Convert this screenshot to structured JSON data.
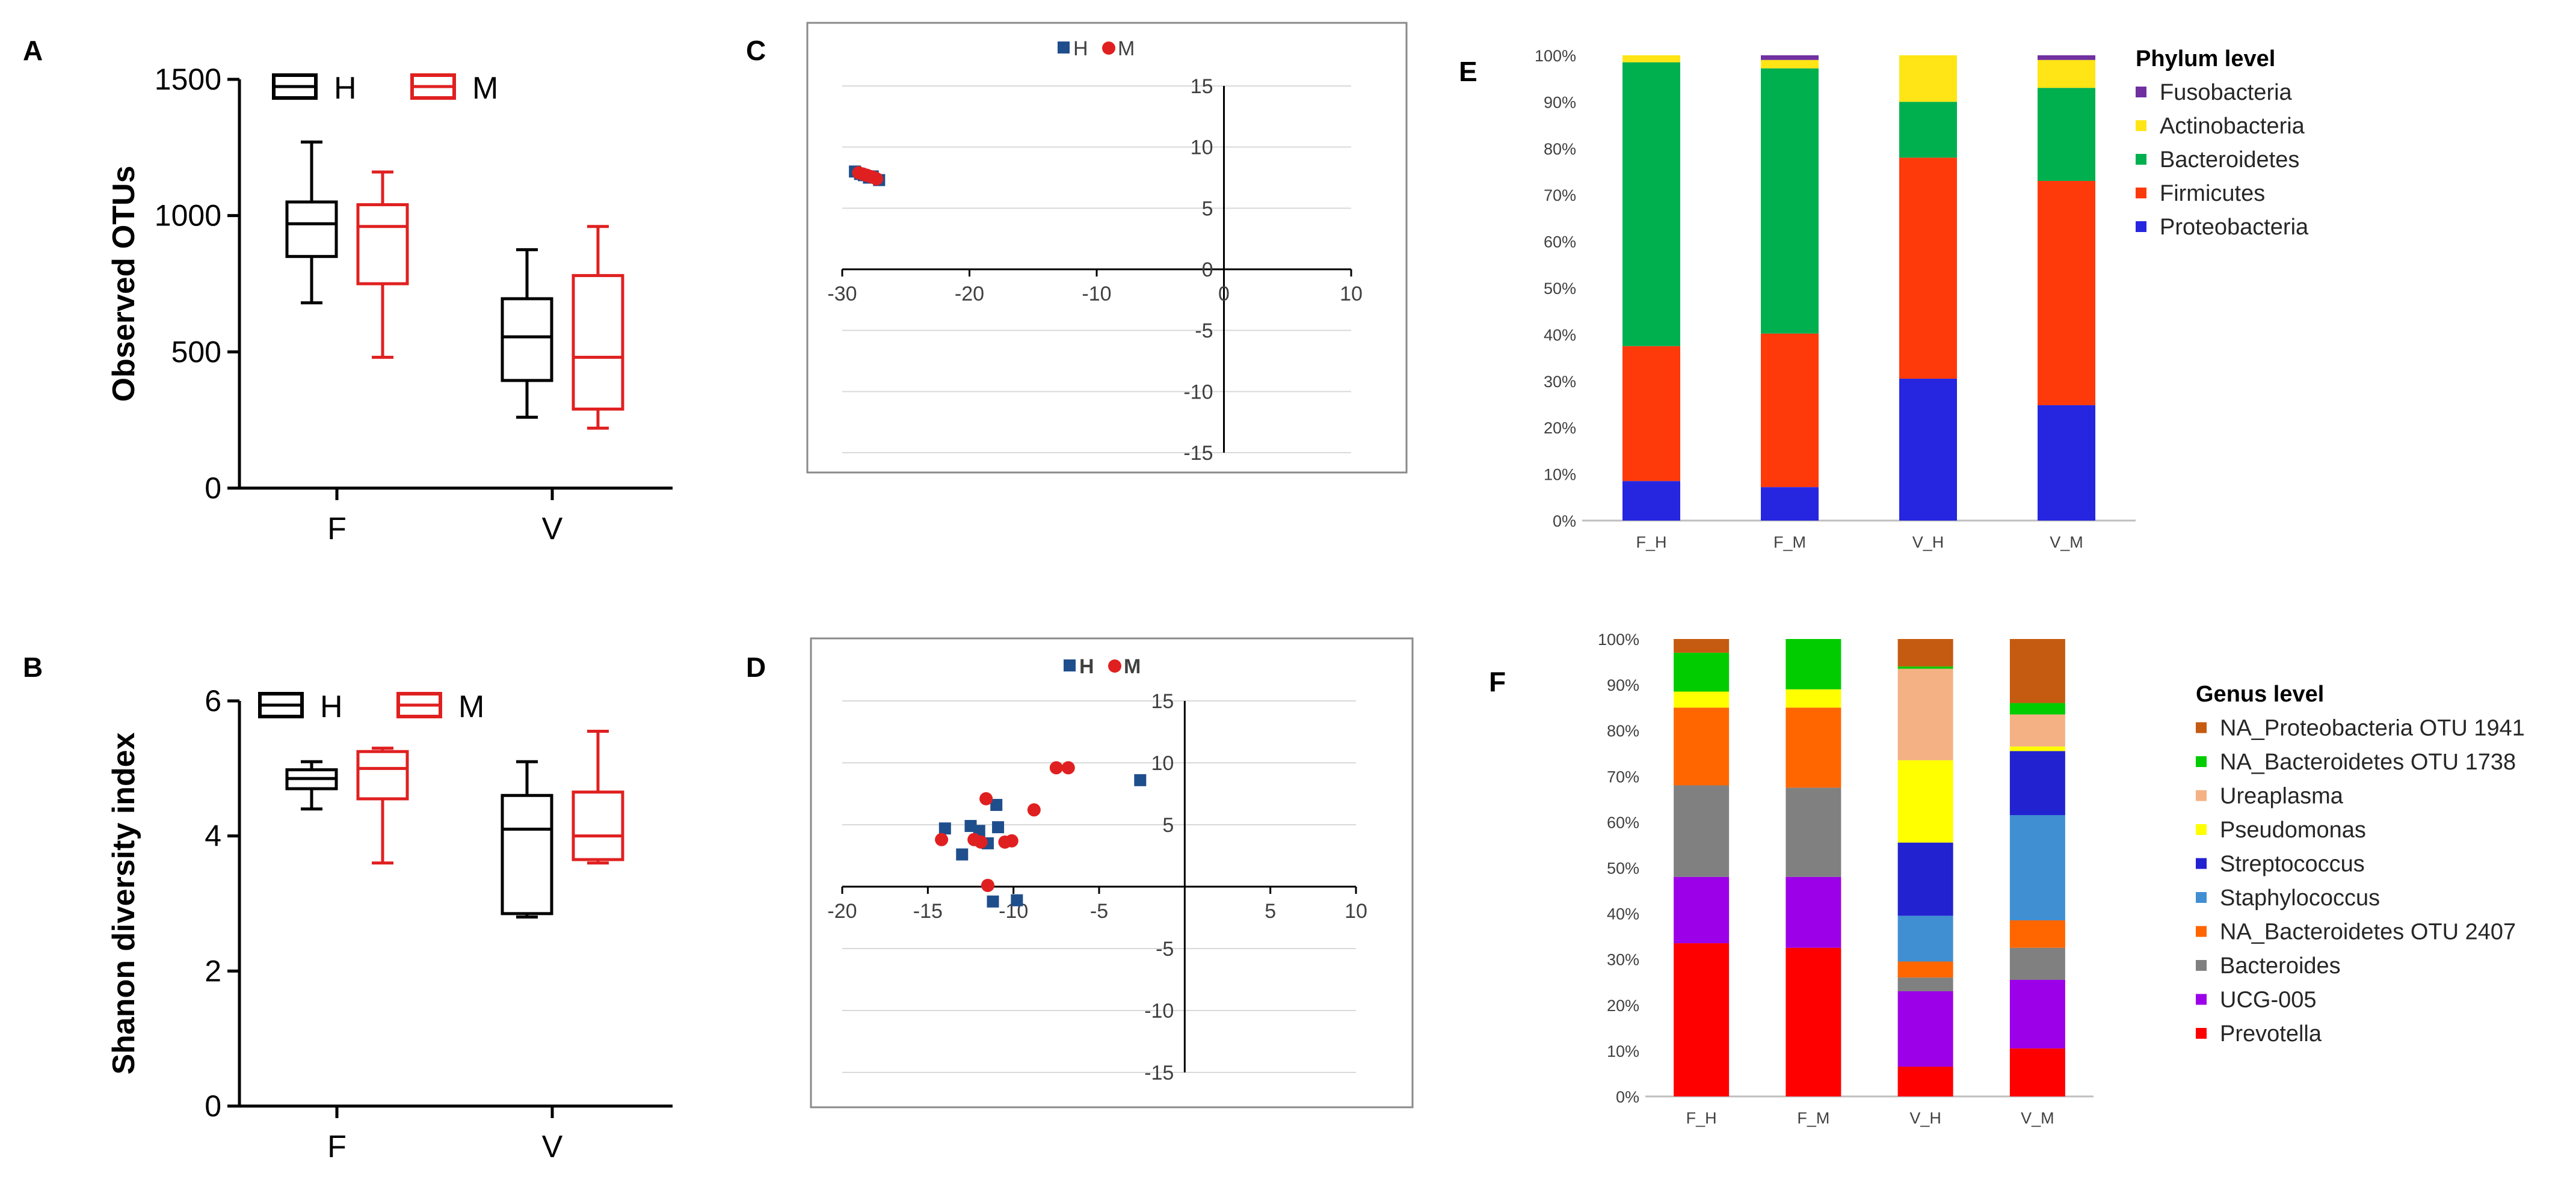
{
  "chart_data": [
    {
      "panel": "A",
      "type": "box",
      "ylabel": "Observed OTUs",
      "categories": [
        "F",
        "V"
      ],
      "ylim": [
        0,
        1500
      ],
      "yticks": [
        0,
        500,
        1000,
        1500
      ],
      "legend": [
        "H",
        "M"
      ],
      "series": [
        {
          "name": "H",
          "color": "#000000",
          "boxes": [
            {
              "min": 680,
              "q1": 850,
              "median": 970,
              "q3": 1050,
              "max": 1270
            },
            {
              "min": 260,
              "q1": 395,
              "median": 555,
              "q3": 695,
              "max": 875
            }
          ]
        },
        {
          "name": "M",
          "color": "#e02020",
          "boxes": [
            {
              "min": 480,
              "q1": 750,
              "median": 960,
              "q3": 1040,
              "max": 1160
            },
            {
              "min": 220,
              "q1": 290,
              "median": 480,
              "q3": 780,
              "max": 960
            }
          ]
        }
      ]
    },
    {
      "panel": "B",
      "type": "box",
      "ylabel": "Shanon diversity index",
      "categories": [
        "F",
        "V"
      ],
      "ylim": [
        0,
        6
      ],
      "yticks": [
        0,
        2,
        4,
        6
      ],
      "legend": [
        "H",
        "M"
      ],
      "series": [
        {
          "name": "H",
          "color": "#000000",
          "boxes": [
            {
              "min": 4.4,
              "q1": 4.7,
              "median": 4.85,
              "q3": 4.98,
              "max": 5.1
            },
            {
              "min": 2.8,
              "q1": 2.85,
              "median": 4.1,
              "q3": 4.6,
              "max": 5.1
            }
          ]
        },
        {
          "name": "M",
          "color": "#e02020",
          "boxes": [
            {
              "min": 3.6,
              "q1": 4.55,
              "median": 5.0,
              "q3": 5.25,
              "max": 5.3
            },
            {
              "min": 3.6,
              "q1": 3.65,
              "median": 4.0,
              "q3": 4.65,
              "max": 5.55
            }
          ]
        }
      ]
    },
    {
      "panel": "C",
      "type": "scatter",
      "xlim": [
        -30,
        10
      ],
      "ylim": [
        -15,
        15
      ],
      "xticks": [
        -30,
        -20,
        -10,
        0,
        10
      ],
      "yticks": [
        -15,
        -10,
        -5,
        0,
        5,
        10,
        15
      ],
      "legend": [
        "H",
        "M"
      ],
      "series": [
        {
          "name": "H",
          "color": "#1f4e8c",
          "marker": "square",
          "points": [
            [
              -29.0,
              8.0
            ],
            [
              -28.6,
              7.8
            ],
            [
              -28.3,
              7.7
            ],
            [
              -27.9,
              7.5
            ],
            [
              -27.6,
              7.6
            ],
            [
              -27.1,
              7.3
            ]
          ]
        },
        {
          "name": "M",
          "color": "#e02020",
          "marker": "circle",
          "points": [
            [
              -28.7,
              7.9
            ],
            [
              -28.4,
              7.8
            ],
            [
              -28.1,
              7.7
            ],
            [
              -27.8,
              7.6
            ],
            [
              -27.5,
              7.5
            ],
            [
              -27.3,
              7.4
            ]
          ]
        }
      ]
    },
    {
      "panel": "D",
      "type": "scatter",
      "xlim": [
        -20,
        10
      ],
      "ylim": [
        -15,
        15
      ],
      "xticks": [
        -20,
        -15,
        -10,
        -5,
        5,
        10
      ],
      "xticklabels": [
        "-20",
        "-15",
        "-10",
        "-5",
        "5",
        "10"
      ],
      "yticks": [
        -15,
        -10,
        -5,
        5,
        10,
        15
      ],
      "legend": [
        "H",
        "M"
      ],
      "series": [
        {
          "name": "H",
          "color": "#1f4e8c",
          "marker": "square",
          "points": [
            [
              -14.0,
              4.7
            ],
            [
              -13.0,
              2.6
            ],
            [
              -12.5,
              4.9
            ],
            [
              -12.0,
              4.5
            ],
            [
              -11.5,
              3.5
            ],
            [
              -11.0,
              6.6
            ],
            [
              -10.9,
              4.8
            ],
            [
              -11.2,
              -1.2
            ],
            [
              -9.8,
              -1.1
            ],
            [
              -2.6,
              8.6
            ]
          ]
        },
        {
          "name": "M",
          "color": "#e02020",
          "marker": "circle",
          "points": [
            [
              -14.2,
              3.8
            ],
            [
              -12.3,
              3.8
            ],
            [
              -11.9,
              3.6
            ],
            [
              -11.6,
              7.1
            ],
            [
              -11.5,
              0.1
            ],
            [
              -10.5,
              3.6
            ],
            [
              -10.1,
              3.7
            ],
            [
              -8.8,
              6.2
            ],
            [
              -7.5,
              9.6
            ],
            [
              -6.8,
              9.6
            ]
          ]
        }
      ]
    },
    {
      "panel": "E",
      "type": "stacked_bar",
      "legend_title": "Phylum level",
      "categories": [
        "F_H",
        "F_M",
        "V_H",
        "V_M"
      ],
      "yticklabels": [
        "0%",
        "10%",
        "20%",
        "30%",
        "40%",
        "50%",
        "60%",
        "70%",
        "80%",
        "90%",
        "100%"
      ],
      "series": [
        {
          "name": "Proteobacteria",
          "color": "#2626e0",
          "values": [
            8.5,
            7.2,
            30.5,
            24.8
          ]
        },
        {
          "name": "Firmicutes",
          "color": "#ff3a0a",
          "values": [
            29.0,
            33.0,
            47.5,
            48.2
          ]
        },
        {
          "name": "Bacteroidetes",
          "color": "#00b04f",
          "values": [
            61.0,
            57.0,
            12.0,
            20.0
          ]
        },
        {
          "name": "Actinobacteria",
          "color": "#ffe515",
          "values": [
            1.5,
            1.8,
            10.0,
            6.0
          ]
        },
        {
          "name": "Fusobacteria",
          "color": "#7030a0",
          "values": [
            0.0,
            1.0,
            0.0,
            1.0
          ]
        }
      ]
    },
    {
      "panel": "F",
      "type": "stacked_bar",
      "legend_title": "Genus level",
      "categories": [
        "F_H",
        "F_M",
        "V_H",
        "V_M"
      ],
      "yticklabels": [
        "0%",
        "10%",
        "20%",
        "30%",
        "40%",
        "50%",
        "60%",
        "70%",
        "80%",
        "90%",
        "100%"
      ],
      "series": [
        {
          "name": "Prevotella",
          "color": "#ff0000",
          "values": [
            33.5,
            32.5,
            6.5,
            10.5
          ]
        },
        {
          "name": "UCG-005",
          "color": "#9b00e8",
          "values": [
            14.5,
            15.5,
            16.5,
            15.0
          ]
        },
        {
          "name": "Bacteroides",
          "color": "#808080",
          "values": [
            20.0,
            19.5,
            3.0,
            7.0
          ]
        },
        {
          "name": "NA_Bacteroidetes OTU 2407",
          "color": "#ff6600",
          "values": [
            17.0,
            17.5,
            3.5,
            6.0
          ]
        },
        {
          "name": "Staphylococcus",
          "color": "#3f8fd2",
          "values": [
            0.0,
            0.0,
            10.0,
            23.0
          ]
        },
        {
          "name": "Streptococcus",
          "color": "#2222d0",
          "values": [
            0.0,
            0.0,
            16.0,
            14.0
          ]
        },
        {
          "name": "Pseudomonas",
          "color": "#ffff00",
          "values": [
            3.5,
            4.0,
            18.0,
            1.0
          ]
        },
        {
          "name": "Ureaplasma",
          "color": "#f4b183",
          "values": [
            0.0,
            0.0,
            20.0,
            7.0
          ]
        },
        {
          "name": "NA_Bacteroidetes OTU 1738",
          "color": "#00cc00",
          "values": [
            8.5,
            11.0,
            0.5,
            2.5
          ]
        },
        {
          "name": "NA_Proteobacteria OTU 1941",
          "color": "#c55a11",
          "values": [
            3.0,
            0.0,
            6.0,
            14.0
          ]
        }
      ]
    }
  ]
}
